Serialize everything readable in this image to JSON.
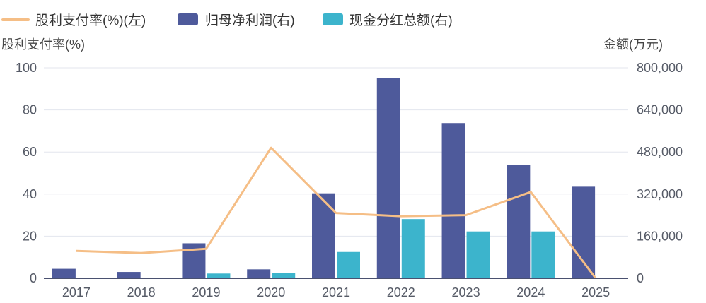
{
  "chart_data": {
    "type": "bar",
    "categories": [
      "2017",
      "2018",
      "2019",
      "2020",
      "2021",
      "2022",
      "2023",
      "2024",
      "2025"
    ],
    "series": [
      {
        "name": "股利支付率(%)(左)",
        "kind": "line",
        "axis": "left",
        "color": "#f5be86",
        "values": [
          13,
          12,
          14,
          62,
          31,
          29.5,
          30,
          41,
          0
        ]
      },
      {
        "name": "归母净利润(右)",
        "kind": "bar",
        "axis": "right",
        "color": "#4e5a9b",
        "values": [
          36000,
          24000,
          133000,
          34000,
          323000,
          760000,
          590000,
          430000,
          348000
        ]
      },
      {
        "name": "现金分红总额(右)",
        "kind": "bar",
        "axis": "right",
        "color": "#3cb4cc",
        "values": [
          0,
          0,
          18000,
          20000,
          100000,
          225000,
          178000,
          178000,
          0
        ]
      }
    ],
    "left_axis": {
      "title": "股利支付率(%)",
      "min": 0,
      "max": 100,
      "ticks": [
        "0",
        "20",
        "40",
        "60",
        "80",
        "100"
      ]
    },
    "right_axis": {
      "title": "金额(万元)",
      "min": 0,
      "max": 800000,
      "ticks": [
        "0",
        "160,000",
        "320,000",
        "480,000",
        "640,000",
        "800,000"
      ]
    },
    "grid": true,
    "legend_position": "top-left"
  }
}
